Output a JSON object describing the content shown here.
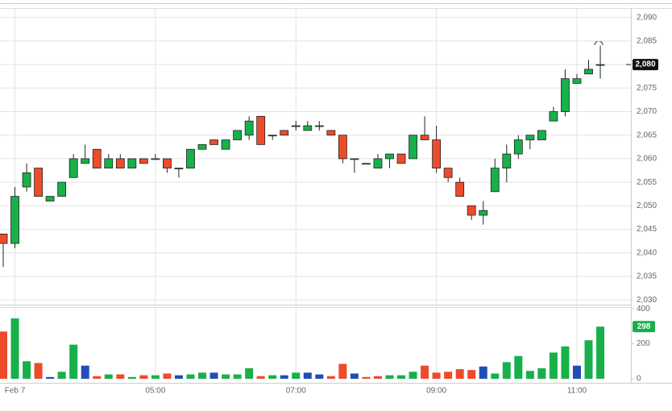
{
  "chart_data": {
    "type": "candlestick",
    "categories": [
      null,
      "Feb 7",
      null,
      null,
      null,
      null,
      null,
      null,
      null,
      null,
      null,
      null,
      null,
      "05:00",
      null,
      null,
      null,
      null,
      null,
      null,
      null,
      null,
      null,
      null,
      null,
      "07:00",
      null,
      null,
      null,
      null,
      null,
      null,
      null,
      null,
      null,
      null,
      null,
      "09:00",
      null,
      null,
      null,
      null,
      null,
      null,
      null,
      null,
      null,
      null,
      null,
      "11:00",
      null,
      null
    ],
    "open": [
      2044,
      2042,
      2054,
      2058,
      2051,
      2052,
      2056,
      2059,
      2062,
      2058,
      2060,
      2058,
      2060,
      2060,
      2060,
      2058,
      2058,
      2062,
      2064,
      2062,
      2064,
      2065,
      2069,
      2065,
      2066,
      2067,
      2066,
      2067,
      2066,
      2065,
      2060,
      2059,
      2058,
      2060,
      2061,
      2060,
      2065,
      2064,
      2058,
      2055,
      2050,
      2048,
      2053,
      2058,
      2061,
      2064,
      2064,
      2068,
      2070,
      2076,
      2078,
      2080
    ],
    "high": [
      2044,
      2054,
      2059,
      2058,
      2052,
      2055,
      2061,
      2063,
      2062,
      2061,
      2061,
      2060,
      2060,
      2061,
      2060,
      2058,
      2062,
      2063,
      2064,
      2064,
      2066,
      2069,
      2069,
      2065,
      2066,
      2068,
      2068,
      2068,
      2066,
      2065,
      2060,
      2059,
      2061,
      2061,
      2061,
      2065,
      2069,
      2067,
      2058,
      2056,
      2050,
      2051,
      2060,
      2063,
      2065,
      2065,
      2066,
      2071,
      2079,
      2078,
      2081,
      2084
    ],
    "low": [
      2037,
      2041,
      2053,
      2052,
      2051,
      2052,
      2056,
      2059,
      2058,
      2058,
      2058,
      2058,
      2059,
      2060,
      2057,
      2056,
      2058,
      2062,
      2063,
      2062,
      2064,
      2064,
      2063,
      2064,
      2065,
      2066,
      2066,
      2066,
      2065,
      2059,
      2057,
      2059,
      2058,
      2058,
      2059,
      2060,
      2064,
      2057,
      2055,
      2052,
      2047,
      2046,
      2053,
      2055,
      2060,
      2062,
      2064,
      2068,
      2069,
      2076,
      2078,
      2077
    ],
    "close": [
      2042,
      2052,
      2057,
      2052,
      2052,
      2055,
      2060,
      2060,
      2058,
      2060,
      2058,
      2060,
      2059,
      2060,
      2058,
      2058,
      2062,
      2063,
      2063,
      2064,
      2066,
      2068,
      2063,
      2065,
      2065,
      2067,
      2067,
      2067,
      2065,
      2060,
      2060,
      2059,
      2060,
      2061,
      2059,
      2065,
      2064,
      2058,
      2056,
      2052,
      2048,
      2049,
      2058,
      2061,
      2064,
      2065,
      2066,
      2070,
      2077,
      2077,
      2079,
      2080
    ],
    "up_color": "#17b04a",
    "down_color": "#ee4b2b",
    "ylim": [
      2029,
      2092
    ],
    "yticks": [
      {
        "value": 2030,
        "label": "2,030"
      },
      {
        "value": 2035,
        "label": "2,035"
      },
      {
        "value": 2040,
        "label": "2,040"
      },
      {
        "value": 2045,
        "label": "2,045"
      },
      {
        "value": 2050,
        "label": "2,050"
      },
      {
        "value": 2055,
        "label": "2,055"
      },
      {
        "value": 2060,
        "label": "2,060"
      },
      {
        "value": 2065,
        "label": "2,065"
      },
      {
        "value": 2070,
        "label": "2,070"
      },
      {
        "value": 2075,
        "label": "2,075"
      },
      {
        "value": 2080,
        "label": "2,080"
      },
      {
        "value": 2085,
        "label": "2,085"
      },
      {
        "value": 2090,
        "label": "2,090"
      }
    ],
    "last_price": {
      "value": 2080,
      "label": "2,080"
    },
    "grid": true,
    "volume": {
      "values": [
        270,
        345,
        100,
        90,
        10,
        40,
        195,
        75,
        15,
        25,
        25,
        10,
        20,
        20,
        30,
        20,
        25,
        35,
        35,
        25,
        25,
        60,
        15,
        20,
        20,
        35,
        35,
        25,
        15,
        85,
        30,
        10,
        15,
        20,
        20,
        40,
        75,
        35,
        40,
        55,
        50,
        70,
        30,
        95,
        130,
        45,
        60,
        150,
        185,
        75,
        220,
        298
      ],
      "colors": [
        "#ee4b2b",
        "#17b04a",
        "#17b04a",
        "#ee4b2b",
        "#1f4fb4",
        "#17b04a",
        "#17b04a",
        "#1f4fb4",
        "#ee4b2b",
        "#17b04a",
        "#ee4b2b",
        "#17b04a",
        "#ee4b2b",
        "#17b04a",
        "#ee4b2b",
        "#1f4fb4",
        "#17b04a",
        "#17b04a",
        "#1f4fb4",
        "#17b04a",
        "#17b04a",
        "#17b04a",
        "#ee4b2b",
        "#17b04a",
        "#1f4fb4",
        "#17b04a",
        "#1f4fb4",
        "#1f4fb4",
        "#ee4b2b",
        "#ee4b2b",
        "#1f4fb4",
        "#ee4b2b",
        "#ee4b2b",
        "#17b04a",
        "#17b04a",
        "#17b04a",
        "#ee4b2b",
        "#ee4b2b",
        "#ee4b2b",
        "#ee4b2b",
        "#ee4b2b",
        "#1f4fb4",
        "#17b04a",
        "#17b04a",
        "#17b04a",
        "#17b04a",
        "#17b04a",
        "#17b04a",
        "#17b04a",
        "#1f4fb4",
        "#17b04a",
        "#17b04a"
      ],
      "ylim": [
        0,
        410
      ],
      "yticks": [
        0,
        200,
        400
      ]
    }
  }
}
